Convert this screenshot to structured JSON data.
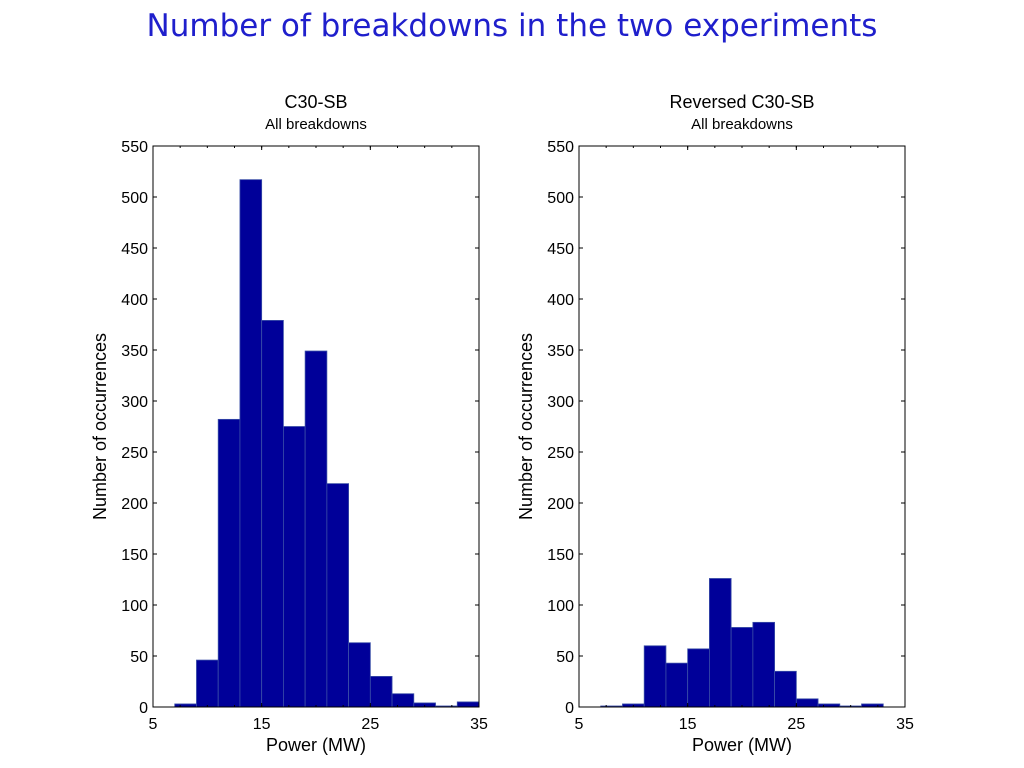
{
  "page_title": "Number of breakdowns in the two experiments",
  "colors": {
    "bar_fill": "#000099",
    "bar_stroke": "#3b4fa8",
    "title": "#1f1fcc"
  },
  "chart_data": [
    {
      "type": "bar",
      "title": "C30-SB",
      "subtitle": "All breakdowns",
      "xlabel": "Power (MW)",
      "ylabel": "Number of occurrences",
      "xlim": [
        5,
        35
      ],
      "ylim": [
        0,
        550
      ],
      "xticks": [
        5,
        15,
        25,
        35
      ],
      "yticks": [
        0,
        50,
        100,
        150,
        200,
        250,
        300,
        350,
        400,
        450,
        500,
        550
      ],
      "bin_width": 2,
      "bin_starts": [
        7,
        9,
        11,
        13,
        15,
        17,
        19,
        21,
        23,
        25,
        27,
        29,
        31,
        33
      ],
      "values": [
        3,
        46,
        282,
        517,
        379,
        275,
        349,
        219,
        63,
        30,
        13,
        4,
        1,
        5
      ],
      "grid": false
    },
    {
      "type": "bar",
      "title": "Reversed C30-SB",
      "subtitle": "All breakdowns",
      "xlabel": "Power (MW)",
      "ylabel": "Number of occurrences",
      "xlim": [
        5,
        35
      ],
      "ylim": [
        0,
        550
      ],
      "xticks": [
        5,
        15,
        25,
        35
      ],
      "yticks": [
        0,
        50,
        100,
        150,
        200,
        250,
        300,
        350,
        400,
        450,
        500,
        550
      ],
      "bin_width": 2,
      "bin_starts": [
        7,
        9,
        11,
        13,
        15,
        17,
        19,
        21,
        23,
        25,
        27,
        29,
        31
      ],
      "values": [
        1,
        3,
        60,
        43,
        57,
        126,
        78,
        83,
        35,
        8,
        3,
        1,
        3
      ],
      "grid": false
    }
  ]
}
